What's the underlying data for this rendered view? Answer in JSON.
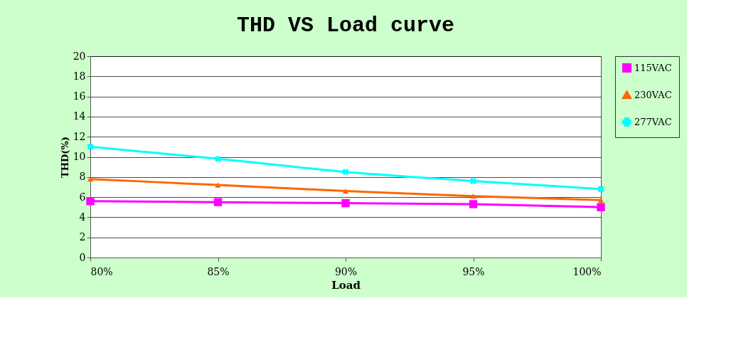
{
  "chart_data": {
    "type": "line",
    "title": "THD VS Load curve",
    "xlabel": "Load",
    "ylabel": "THD(%)",
    "categories": [
      "80%",
      "85%",
      "90%",
      "95%",
      "100%"
    ],
    "series": [
      {
        "name": "115VAC",
        "color": "#ff00ff",
        "marker": "square",
        "values": [
          5.6,
          5.5,
          5.4,
          5.3,
          5.0
        ]
      },
      {
        "name": "230VAC",
        "color": "#ff6600",
        "marker": "triangle",
        "values": [
          7.8,
          7.2,
          6.6,
          6.1,
          5.7
        ]
      },
      {
        "name": "277VAC",
        "color": "#00ffff",
        "marker": "cross",
        "values": [
          11.0,
          9.8,
          8.5,
          7.6,
          6.8
        ]
      }
    ],
    "ylim": [
      0,
      20
    ],
    "yticks": [
      0,
      2,
      4,
      6,
      8,
      10,
      12,
      14,
      16,
      18,
      20
    ],
    "grid": "y",
    "legend": "right",
    "line_style": "solid"
  }
}
